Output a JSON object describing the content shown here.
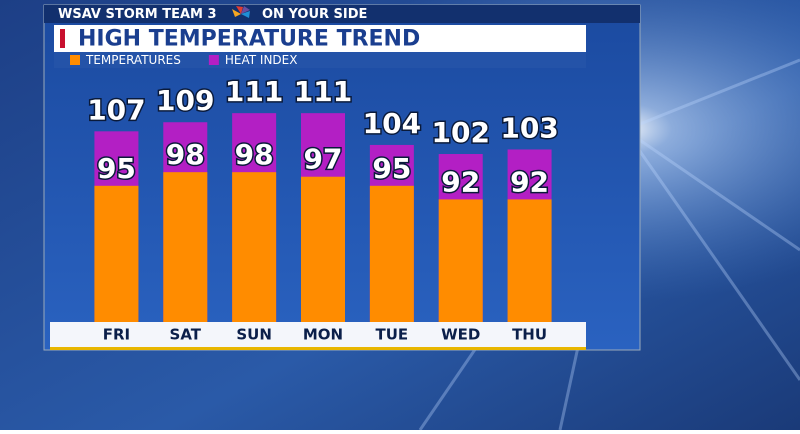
{
  "header": {
    "station": "WSAV STORM TEAM 3",
    "slogan": "ON YOUR SIDE"
  },
  "chart_data": {
    "type": "bar",
    "title": "HIGH TEMPERATURE TREND",
    "categories": [
      "FRI",
      "SAT",
      "SUN",
      "MON",
      "TUE",
      "WED",
      "THU"
    ],
    "series": [
      {
        "name": "TEMPERATURES",
        "color": "#ff8c00",
        "values": [
          95,
          98,
          98,
          97,
          95,
          92,
          92
        ]
      },
      {
        "name": "HEAT INDEX",
        "color": "#b31fc4",
        "values": [
          107,
          109,
          111,
          111,
          104,
          102,
          103
        ]
      }
    ],
    "ylim": [
      65,
      115
    ]
  }
}
